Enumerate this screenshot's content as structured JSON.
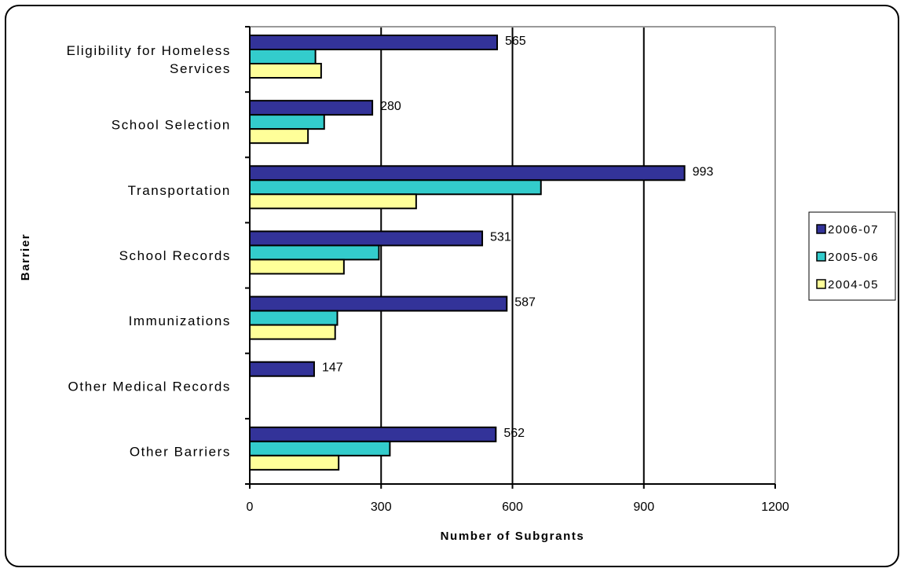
{
  "chart_data": {
    "type": "bar",
    "orientation": "horizontal",
    "categories": [
      "Eligibility for Homeless Services",
      "School Selection",
      "Transportation",
      "School Records",
      "Immunizations",
      "Other Medical Records",
      "Other Barriers"
    ],
    "category_lines": [
      [
        "Eligibility for Homeless",
        "Services"
      ],
      [
        "School Selection"
      ],
      [
        "Transportation"
      ],
      [
        "School Records"
      ],
      [
        "Immunizations"
      ],
      [
        "Other Medical Records"
      ],
      [
        "Other Barriers"
      ]
    ],
    "series": [
      {
        "name": "2006-07",
        "color": "#333399",
        "values": [
          565,
          280,
          993,
          531,
          587,
          147,
          562
        ],
        "labels": [
          "565",
          "280",
          "993",
          "531",
          "587",
          "147",
          "562"
        ]
      },
      {
        "name": "2005-06",
        "color": "#33CCCC",
        "values": [
          150,
          170,
          665,
          295,
          200,
          null,
          320
        ],
        "labels": null
      },
      {
        "name": "2004-05",
        "color": "#FFFF99",
        "values": [
          163,
          133,
          380,
          215,
          195,
          null,
          203
        ],
        "labels": null
      }
    ],
    "xlabel": "Number of Subgrants",
    "ylabel": "Barrier",
    "xlim": [
      0,
      1200
    ],
    "xticks": [
      0,
      300,
      600,
      900,
      1200
    ],
    "xtick_labels": [
      "0",
      "300",
      "600",
      "900",
      "1200"
    ],
    "grid": "vertical",
    "legend_position": "right",
    "legend_order": [
      "2006-07",
      "2005-06",
      "2004-05"
    ]
  }
}
